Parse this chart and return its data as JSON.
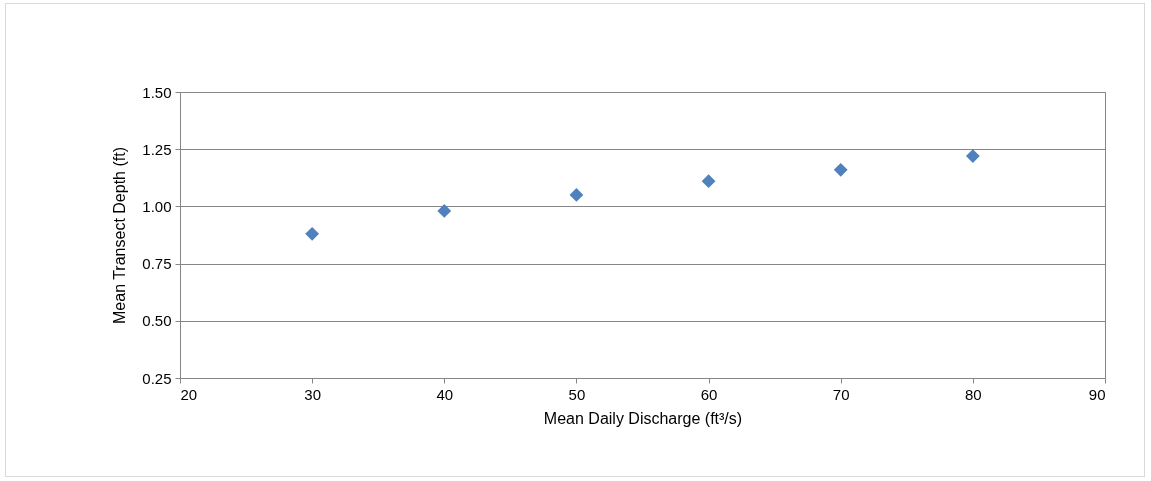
{
  "chart_data": {
    "type": "scatter",
    "xlabel": "Mean Daily Discharge (ft³/s)",
    "ylabel": "Mean Transect Depth (ft)",
    "x": [
      30,
      40,
      50,
      60,
      70,
      80
    ],
    "series": [
      {
        "color": "#4f81bd",
        "values": [
          0.88,
          0.98,
          1.05,
          1.11,
          1.16,
          1.22
        ]
      }
    ],
    "xlim": [
      20,
      90
    ],
    "xticks": [
      20,
      30,
      40,
      50,
      60,
      70,
      80,
      90
    ],
    "ylim": [
      0.25,
      1.5
    ],
    "yticks": [
      0.25,
      {
        "value": 0.5,
        "label": "0.50"
      },
      0.75,
      {
        "value": 1,
        "label": "1.00"
      },
      1.25,
      {
        "value": 1.5,
        "label": "1.50"
      }
    ],
    "grid": "y",
    "marker": "diamond"
  }
}
